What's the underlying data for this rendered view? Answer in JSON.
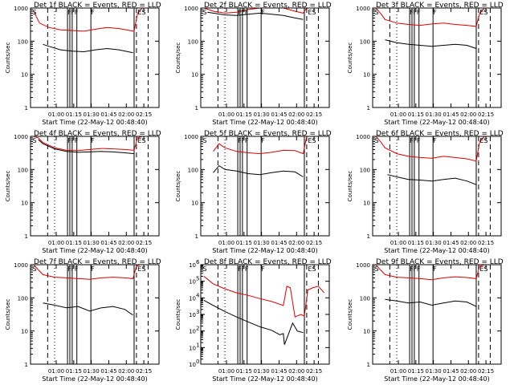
{
  "chart_data": [
    {
      "type": "line",
      "title": "Det 1f BLACK = Events, RED = LLD",
      "xlabel": "Start Time (22-May-12 00:48:40)",
      "ylabel": "Counts/sec",
      "yscale": "log",
      "ylim": [
        1,
        1000
      ],
      "y_tick_labels": [
        "1",
        "10",
        "100",
        "1000"
      ],
      "x_tick_labels": [
        "01:00",
        "01:15",
        "01:30",
        "01:45",
        "02:00",
        "02:15"
      ],
      "x_ticks_min": [
        71.33,
        86.33,
        101.33,
        116.33,
        131.33,
        146.33
      ],
      "xlim": [
        49.33,
        159.33
      ],
      "grid": false,
      "legend": "none",
      "series": [
        {
          "color": "#dd0000",
          "x": [
            52,
            57,
            65,
            75,
            85,
            95,
            105,
            115,
            125,
            138,
            141,
            145,
            150,
            155
          ],
          "values": [
            800,
            350,
            260,
            220,
            210,
            200,
            230,
            260,
            240,
            200,
            700,
            1000,
            1000,
            1000
          ]
        },
        {
          "color": "#000000",
          "x": [
            60,
            65,
            75,
            85,
            95,
            105,
            115,
            125,
            137
          ],
          "values": [
            80,
            70,
            55,
            50,
            48,
            55,
            60,
            55,
            45
          ]
        }
      ],
      "markers": [
        "S",
        "F",
        "F",
        "F",
        "F",
        "ES"
      ],
      "vlines": {
        "solid": [
          81,
          83,
          85,
          89,
          101,
          138
        ],
        "dashed": [
          64,
          140,
          150
        ],
        "dotted": [
          70,
          138
        ]
      }
    },
    {
      "type": "line",
      "title": "Det 2f BLACK = Events, RED = LLD",
      "xlabel": "Start Time (22-May-12 00:48:40)",
      "ylabel": "Counts/sec",
      "yscale": "log",
      "ylim": [
        1,
        1000
      ],
      "y_tick_labels": [
        "1",
        "10",
        "100",
        "1000"
      ],
      "x_tick_labels": [
        "01:00",
        "01:15",
        "01:30",
        "01:45",
        "02:00",
        "02:15"
      ],
      "x_ticks_min": [
        71.33,
        86.33,
        101.33,
        116.33,
        131.33,
        146.33
      ],
      "xlim": [
        49.33,
        159.33
      ],
      "grid": false,
      "legend": "none",
      "series": [
        {
          "color": "#dd0000",
          "x": [
            52,
            56,
            60,
            70,
            80,
            90,
            100,
            110,
            120,
            130,
            137,
            140,
            145,
            150,
            155
          ],
          "values": [
            1000,
            900,
            800,
            700,
            750,
            900,
            1000,
            1200,
            1000,
            800,
            700,
            1000,
            1000,
            1000,
            1000
          ]
        },
        {
          "color": "#000000",
          "x": [
            55,
            60,
            70,
            80,
            90,
            100,
            110,
            120,
            130,
            137
          ],
          "values": [
            750,
            700,
            620,
            600,
            650,
            700,
            650,
            600,
            500,
            450
          ]
        }
      ],
      "markers": [
        "S",
        "F",
        "F",
        "F",
        "F",
        "ES"
      ],
      "vlines": {
        "solid": [
          81,
          83,
          85,
          89,
          101,
          138
        ],
        "dashed": [
          64,
          140,
          150
        ],
        "dotted": [
          70,
          138
        ]
      }
    },
    {
      "type": "line",
      "title": "Det 3f BLACK = Events, RED = LLD",
      "xlabel": "Start Time (22-May-12 00:48:40)",
      "ylabel": "Counts/sec",
      "yscale": "log",
      "ylim": [
        1,
        1000
      ],
      "y_tick_labels": [
        "1",
        "10",
        "100",
        "1000"
      ],
      "x_tick_labels": [
        "01:00",
        "01:15",
        "01:30",
        "01:45",
        "02:00",
        "02:15"
      ],
      "x_ticks_min": [
        71.33,
        86.33,
        101.33,
        116.33,
        131.33,
        146.33
      ],
      "xlim": [
        49.33,
        159.33
      ],
      "grid": false,
      "legend": "none",
      "series": [
        {
          "color": "#dd0000",
          "x": [
            52,
            56,
            60,
            70,
            80,
            90,
            100,
            110,
            120,
            130,
            138,
            141,
            145,
            150,
            155
          ],
          "values": [
            1000,
            700,
            450,
            350,
            320,
            300,
            330,
            350,
            320,
            300,
            280,
            700,
            1000,
            1000,
            1000
          ]
        },
        {
          "color": "#000000",
          "x": [
            60,
            70,
            80,
            90,
            100,
            110,
            120,
            130,
            138
          ],
          "values": [
            110,
            90,
            80,
            75,
            70,
            75,
            80,
            75,
            60
          ]
        }
      ],
      "markers": [
        "S",
        "F",
        "F",
        "F",
        "F",
        "ES"
      ],
      "vlines": {
        "solid": [
          81,
          83,
          85,
          89,
          101,
          138
        ],
        "dashed": [
          64,
          140,
          150
        ],
        "dotted": [
          70,
          138
        ]
      }
    },
    {
      "type": "line",
      "title": "Det 4f BLACK = Events, RED = LLD",
      "xlabel": "Start Time (22-May-12 00:48:40)",
      "ylabel": "Counts/sec",
      "yscale": "log",
      "ylim": [
        1,
        1000
      ],
      "y_tick_labels": [
        "1",
        "10",
        "100",
        "1000"
      ],
      "x_tick_labels": [
        "01:00",
        "01:15",
        "01:30",
        "01:45",
        "02:00",
        "02:15"
      ],
      "x_ticks_min": [
        71.33,
        86.33,
        101.33,
        116.33,
        131.33,
        146.33
      ],
      "xlim": [
        49.33,
        159.33
      ],
      "grid": false,
      "legend": "none",
      "series": [
        {
          "color": "#dd0000",
          "x": [
            52,
            56,
            60,
            70,
            80,
            90,
            100,
            110,
            120,
            130,
            138,
            141,
            145,
            150,
            155
          ],
          "values": [
            1000,
            900,
            650,
            450,
            380,
            370,
            400,
            430,
            420,
            400,
            380,
            900,
            1000,
            1000,
            1000
          ]
        },
        {
          "color": "#000000",
          "x": [
            56,
            60,
            70,
            80,
            90,
            100,
            110,
            120,
            130,
            138
          ],
          "values": [
            800,
            600,
            420,
            350,
            330,
            340,
            350,
            340,
            320,
            300
          ]
        }
      ],
      "markers": [
        "S",
        "F",
        "F",
        "F",
        "F",
        "ES"
      ],
      "vlines": {
        "solid": [
          81,
          83,
          85,
          89,
          101,
          138
        ],
        "dashed": [
          64,
          140,
          150
        ],
        "dotted": [
          70,
          138
        ]
      }
    },
    {
      "type": "line",
      "title": "Det 5f BLACK = Events, RED = LLD",
      "xlabel": "Start Time (22-May-12 00:48:40)",
      "ylabel": "Counts/sec",
      "yscale": "log",
      "ylim": [
        1,
        1000
      ],
      "y_tick_labels": [
        "1",
        "10",
        "100",
        "1000"
      ],
      "x_tick_labels": [
        "01:00",
        "01:15",
        "01:30",
        "01:45",
        "02:00",
        "02:15"
      ],
      "x_ticks_min": [
        71.33,
        86.33,
        101.33,
        116.33,
        131.33,
        146.33
      ],
      "xlim": [
        49.33,
        159.33
      ],
      "grid": false,
      "legend": "none",
      "series": [
        {
          "color": "#dd0000",
          "x": [
            60,
            65,
            70,
            80,
            90,
            100,
            110,
            120,
            130,
            137,
            140,
            143
          ],
          "values": [
            350,
            600,
            450,
            350,
            320,
            300,
            330,
            380,
            370,
            300,
            1000,
            1000
          ]
        },
        {
          "color": "#000000",
          "x": [
            60,
            65,
            70,
            80,
            90,
            100,
            110,
            120,
            130,
            137
          ],
          "values": [
            80,
            130,
            100,
            90,
            75,
            70,
            80,
            90,
            85,
            60
          ]
        }
      ],
      "markers": [
        "S",
        "F",
        "F",
        "F",
        "F",
        "ES"
      ],
      "vlines": {
        "solid": [
          81,
          83,
          85,
          89,
          101,
          138
        ],
        "dashed": [
          64,
          140,
          150
        ],
        "dotted": [
          70,
          138
        ]
      }
    },
    {
      "type": "line",
      "title": "Det 6f BLACK = Events, RED = LLD",
      "xlabel": "Start Time (22-May-12 00:48:40)",
      "ylabel": "Counts/sec",
      "yscale": "log",
      "ylim": [
        1,
        1000
      ],
      "y_tick_labels": [
        "1",
        "10",
        "100",
        "1000"
      ],
      "x_tick_labels": [
        "01:00",
        "01:15",
        "01:30",
        "01:45",
        "02:00",
        "02:15"
      ],
      "x_ticks_min": [
        71.33,
        86.33,
        101.33,
        116.33,
        131.33,
        146.33
      ],
      "xlim": [
        49.33,
        159.33
      ],
      "grid": false,
      "legend": "none",
      "series": [
        {
          "color": "#dd0000",
          "x": [
            52,
            56,
            60,
            70,
            80,
            90,
            100,
            110,
            120,
            130,
            138,
            141,
            145,
            150,
            155
          ],
          "values": [
            1000,
            700,
            450,
            300,
            250,
            230,
            220,
            250,
            230,
            210,
            180,
            700,
            1000,
            1000,
            1000
          ]
        },
        {
          "color": "#000000",
          "x": [
            62,
            70,
            80,
            90,
            100,
            110,
            120,
            130,
            138
          ],
          "values": [
            70,
            60,
            50,
            48,
            45,
            50,
            55,
            45,
            35
          ]
        }
      ],
      "markers": [
        "S",
        "F",
        "F",
        "F",
        "F",
        "ES"
      ],
      "vlines": {
        "solid": [
          81,
          83,
          85,
          89,
          101,
          138
        ],
        "dashed": [
          64,
          140,
          150
        ],
        "dotted": [
          70,
          138
        ]
      }
    },
    {
      "type": "line",
      "title": "Det 7f BLACK = Events, RED = LLD",
      "xlabel": "Start Time (22-May-12 00:48:40)",
      "ylabel": "Counts/sec",
      "yscale": "log",
      "ylim": [
        1,
        1000
      ],
      "y_tick_labels": [
        "1",
        "10",
        "100",
        "1000"
      ],
      "x_tick_labels": [
        "01:00",
        "01:15",
        "01:30",
        "01:45",
        "02:00",
        "02:15"
      ],
      "x_ticks_min": [
        71.33,
        86.33,
        101.33,
        116.33,
        131.33,
        146.33
      ],
      "xlim": [
        49.33,
        159.33
      ],
      "grid": false,
      "legend": "none",
      "series": [
        {
          "color": "#dd0000",
          "x": [
            52,
            56,
            60,
            70,
            80,
            90,
            100,
            110,
            120,
            130,
            137,
            140,
            143
          ],
          "values": [
            1000,
            700,
            500,
            420,
            400,
            380,
            360,
            400,
            420,
            400,
            380,
            900,
            1000
          ]
        },
        {
          "color": "#000000",
          "x": [
            60,
            70,
            80,
            90,
            100,
            110,
            120,
            130,
            137
          ],
          "values": [
            70,
            60,
            50,
            55,
            40,
            50,
            55,
            45,
            30
          ]
        }
      ],
      "markers": [
        "S",
        "F",
        "F",
        "F",
        "F",
        "ES"
      ],
      "vlines": {
        "solid": [
          81,
          83,
          85,
          89,
          101,
          138
        ],
        "dashed": [
          64,
          140,
          150
        ],
        "dotted": [
          70,
          138
        ]
      }
    },
    {
      "type": "line",
      "title": "Det 8f BLACK = Events, RED = LLD",
      "xlabel": "Start Time (22-May-12 00:48:40)",
      "ylabel": "Counts/sec",
      "yscale": "log",
      "ylim": [
        1,
        1000000
      ],
      "y_tick_labels": [
        "10",
        "10",
        "10",
        "10",
        "10",
        "10",
        "10"
      ],
      "y_tick_exponents": [
        "0",
        "1",
        "2",
        "3",
        "4",
        "5",
        "6"
      ],
      "x_tick_labels": [
        "01:00",
        "01:15",
        "01:30",
        "01:45",
        "02:00",
        "02:15"
      ],
      "x_ticks_min": [
        71.33,
        86.33,
        101.33,
        116.33,
        131.33,
        146.33
      ],
      "xlim": [
        49.33,
        159.33
      ],
      "grid": false,
      "legend": "none",
      "series": [
        {
          "color": "#dd0000",
          "x": [
            52,
            60,
            70,
            80,
            90,
            100,
            110,
            120,
            123,
            126,
            130,
            135,
            138,
            141,
            145,
            150,
            155
          ],
          "values": [
            200000,
            70000,
            35000,
            20000,
            14000,
            9000,
            6000,
            3500,
            50000,
            40000,
            700,
            1000,
            800,
            30000,
            40000,
            50000,
            20000
          ]
        },
        {
          "color": "#000000",
          "x": [
            52,
            60,
            70,
            80,
            90,
            100,
            110,
            117,
            120,
            121,
            128,
            132,
            137
          ],
          "values": [
            7000,
            3500,
            1500,
            700,
            350,
            180,
            110,
            60,
            70,
            15,
            300,
            100,
            80
          ]
        }
      ],
      "markers": [
        "S",
        "F",
        "F",
        "F",
        "F",
        "ES"
      ],
      "vlines": {
        "solid": [
          81,
          83,
          85,
          89,
          101,
          138
        ],
        "dashed": [
          64,
          140,
          150
        ],
        "dotted": [
          70,
          138
        ]
      }
    },
    {
      "type": "line",
      "title": "Det 9f BLACK = Events, RED = LLD",
      "xlabel": "Start Time (22-May-12 00:48:40)",
      "ylabel": "Counts/sec",
      "yscale": "log",
      "ylim": [
        1,
        1000
      ],
      "y_tick_labels": [
        "1",
        "10",
        "100",
        "1000"
      ],
      "x_tick_labels": [
        "01:00",
        "01:15",
        "01:30",
        "01:45",
        "02:00",
        "02:15"
      ],
      "x_ticks_min": [
        71.33,
        86.33,
        101.33,
        116.33,
        131.33,
        146.33
      ],
      "xlim": [
        49.33,
        159.33
      ],
      "grid": false,
      "legend": "none",
      "series": [
        {
          "color": "#dd0000",
          "x": [
            52,
            56,
            60,
            70,
            80,
            90,
            100,
            110,
            120,
            130,
            138,
            141,
            145,
            150,
            155
          ],
          "values": [
            1000,
            700,
            500,
            420,
            400,
            380,
            350,
            400,
            430,
            410,
            380,
            900,
            1000,
            1000,
            1000
          ]
        },
        {
          "color": "#000000",
          "x": [
            60,
            70,
            80,
            90,
            100,
            110,
            120,
            130,
            138
          ],
          "values": [
            90,
            80,
            70,
            75,
            60,
            70,
            80,
            75,
            55
          ]
        }
      ],
      "markers": [
        "S",
        "F",
        "F",
        "F",
        "F",
        "ES"
      ],
      "vlines": {
        "solid": [
          81,
          83,
          85,
          89,
          101,
          138
        ],
        "dashed": [
          64,
          140,
          150
        ],
        "dotted": [
          70,
          138
        ]
      }
    }
  ]
}
